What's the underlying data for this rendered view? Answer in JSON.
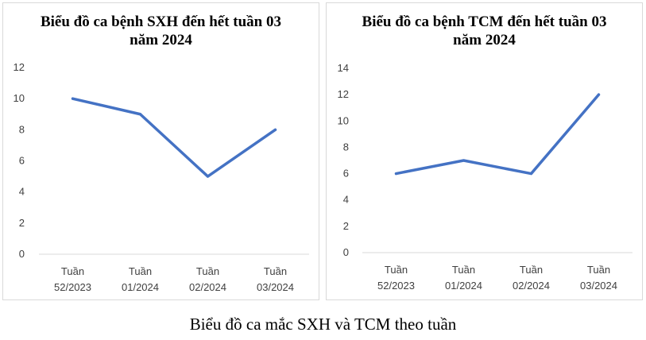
{
  "chart_data": [
    {
      "type": "line",
      "title": "Biểu đồ ca bệnh SXH đến hết tuần 03 năm 2024",
      "categories": [
        [
          "Tuần",
          "52/2023"
        ],
        [
          "Tuần",
          "01/2024"
        ],
        [
          "Tuần",
          "02/2024"
        ],
        [
          "Tuần",
          "03/2024"
        ]
      ],
      "series": [
        {
          "values": [
            10,
            9,
            5,
            8
          ]
        }
      ],
      "ylim": [
        0,
        12
      ],
      "yticks": [
        0,
        2,
        4,
        6,
        8,
        10,
        12
      ],
      "grid": false,
      "line_color": "#4472C4"
    },
    {
      "type": "line",
      "title": "Biểu đồ ca bệnh TCM đến hết tuần 03 năm 2024",
      "categories": [
        [
          "Tuần",
          "52/2023"
        ],
        [
          "Tuần",
          "01/2024"
        ],
        [
          "Tuần",
          "02/2024"
        ],
        [
          "Tuần",
          "03/2024"
        ]
      ],
      "series": [
        {
          "values": [
            6,
            7,
            6,
            12
          ]
        }
      ],
      "ylim": [
        0,
        14
      ],
      "yticks": [
        0,
        2,
        4,
        6,
        8,
        10,
        12,
        14
      ],
      "grid": false,
      "line_color": "#4472C4"
    }
  ],
  "caption": "Biểu đồ ca mắc SXH và TCM theo tuần"
}
